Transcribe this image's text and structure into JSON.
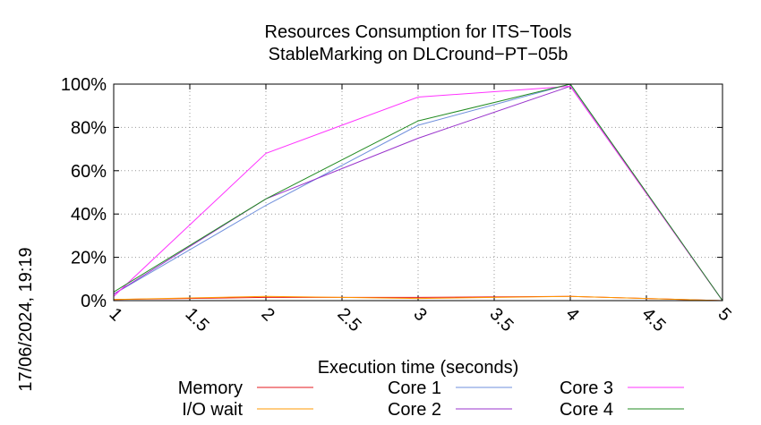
{
  "chart_data": {
    "type": "line",
    "title": "Resources Consumption for ITS−Tools",
    "subtitle": "StableMarking on DLCround−PT−05b",
    "xlabel": "Execution time (seconds)",
    "ylabel": "",
    "side_label": "17/06/2024, 19:19",
    "xlim": [
      1,
      5
    ],
    "ylim": [
      0,
      100
    ],
    "grid": true,
    "legend_position": "bottom",
    "x_ticks": [
      "1",
      "1.5",
      "2",
      "2.5",
      "3",
      "3.5",
      "4",
      "4.5",
      "5"
    ],
    "y_ticks": [
      "0%",
      "20%",
      "40%",
      "60%",
      "80%",
      "100%"
    ],
    "x": [
      1,
      2,
      3,
      4,
      5
    ],
    "series": [
      {
        "name": "Memory",
        "color": "#e41a1c",
        "values": [
          0.5,
          1.5,
          1.5,
          2,
          0
        ]
      },
      {
        "name": "I/O wait",
        "color": "#ff9900",
        "values": [
          0.5,
          2,
          1,
          2,
          0
        ]
      },
      {
        "name": "Core 1",
        "color": "#6f8fdc",
        "values": [
          3,
          44,
          81,
          100,
          0
        ]
      },
      {
        "name": "Core 2",
        "color": "#9933cc",
        "values": [
          3,
          47,
          75,
          99,
          0
        ]
      },
      {
        "name": "Core 3",
        "color": "#ff33ff",
        "values": [
          2,
          68,
          94,
          99,
          0
        ]
      },
      {
        "name": "Core 4",
        "color": "#228b22",
        "values": [
          4,
          47,
          83,
          100,
          0
        ]
      }
    ]
  }
}
